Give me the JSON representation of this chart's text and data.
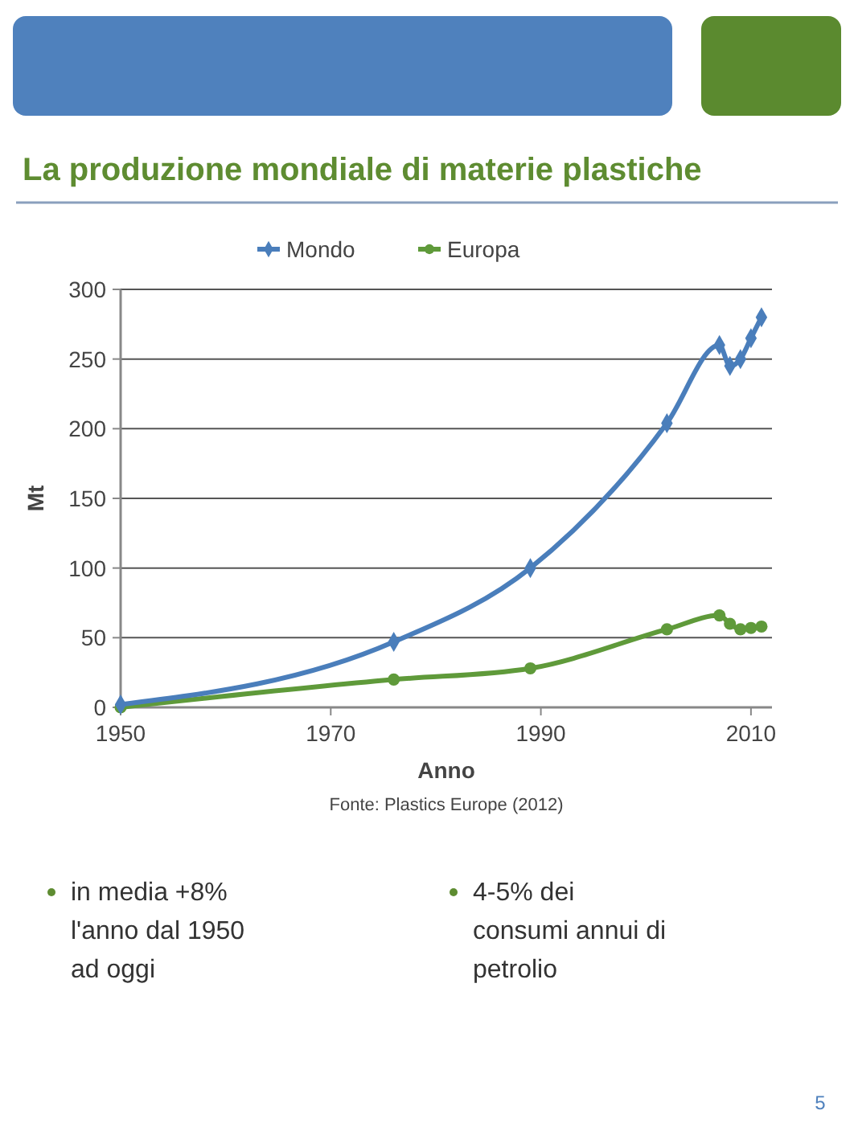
{
  "chart_data": {
    "type": "line",
    "title": "La produzione mondiale di materie plastiche",
    "xlabel": "Anno",
    "ylabel": "Mt",
    "xlim": [
      1950,
      2012
    ],
    "xticks": [
      1950,
      1970,
      1990,
      2010
    ],
    "ylim": [
      0,
      300
    ],
    "yticks": [
      0,
      50,
      100,
      150,
      200,
      250,
      300
    ],
    "grid": "y",
    "legend": "top",
    "series": [
      {
        "name": "Mondo",
        "color": "#4a7ebb",
        "marker": "diamond",
        "x": [
          1950,
          1976,
          1989,
          2002,
          2007,
          2008,
          2009,
          2010,
          2011
        ],
        "values": [
          2,
          47,
          100,
          204,
          260,
          245,
          250,
          265,
          280
        ]
      },
      {
        "name": "Europa",
        "color": "#5f9a3a",
        "marker": "circle",
        "x": [
          1950,
          1976,
          1989,
          2002,
          2007,
          2008,
          2009,
          2010,
          2011
        ],
        "values": [
          0,
          20,
          28,
          56,
          66,
          60,
          56,
          57,
          58
        ]
      }
    ],
    "annotations": [
      "in media +8%\nl'anno dal 1950\nad oggi",
      "4-5% dei\nconsumi annui di\npetrolio",
      "Fonte: Plastics Europe (2012)",
      "5"
    ]
  }
}
